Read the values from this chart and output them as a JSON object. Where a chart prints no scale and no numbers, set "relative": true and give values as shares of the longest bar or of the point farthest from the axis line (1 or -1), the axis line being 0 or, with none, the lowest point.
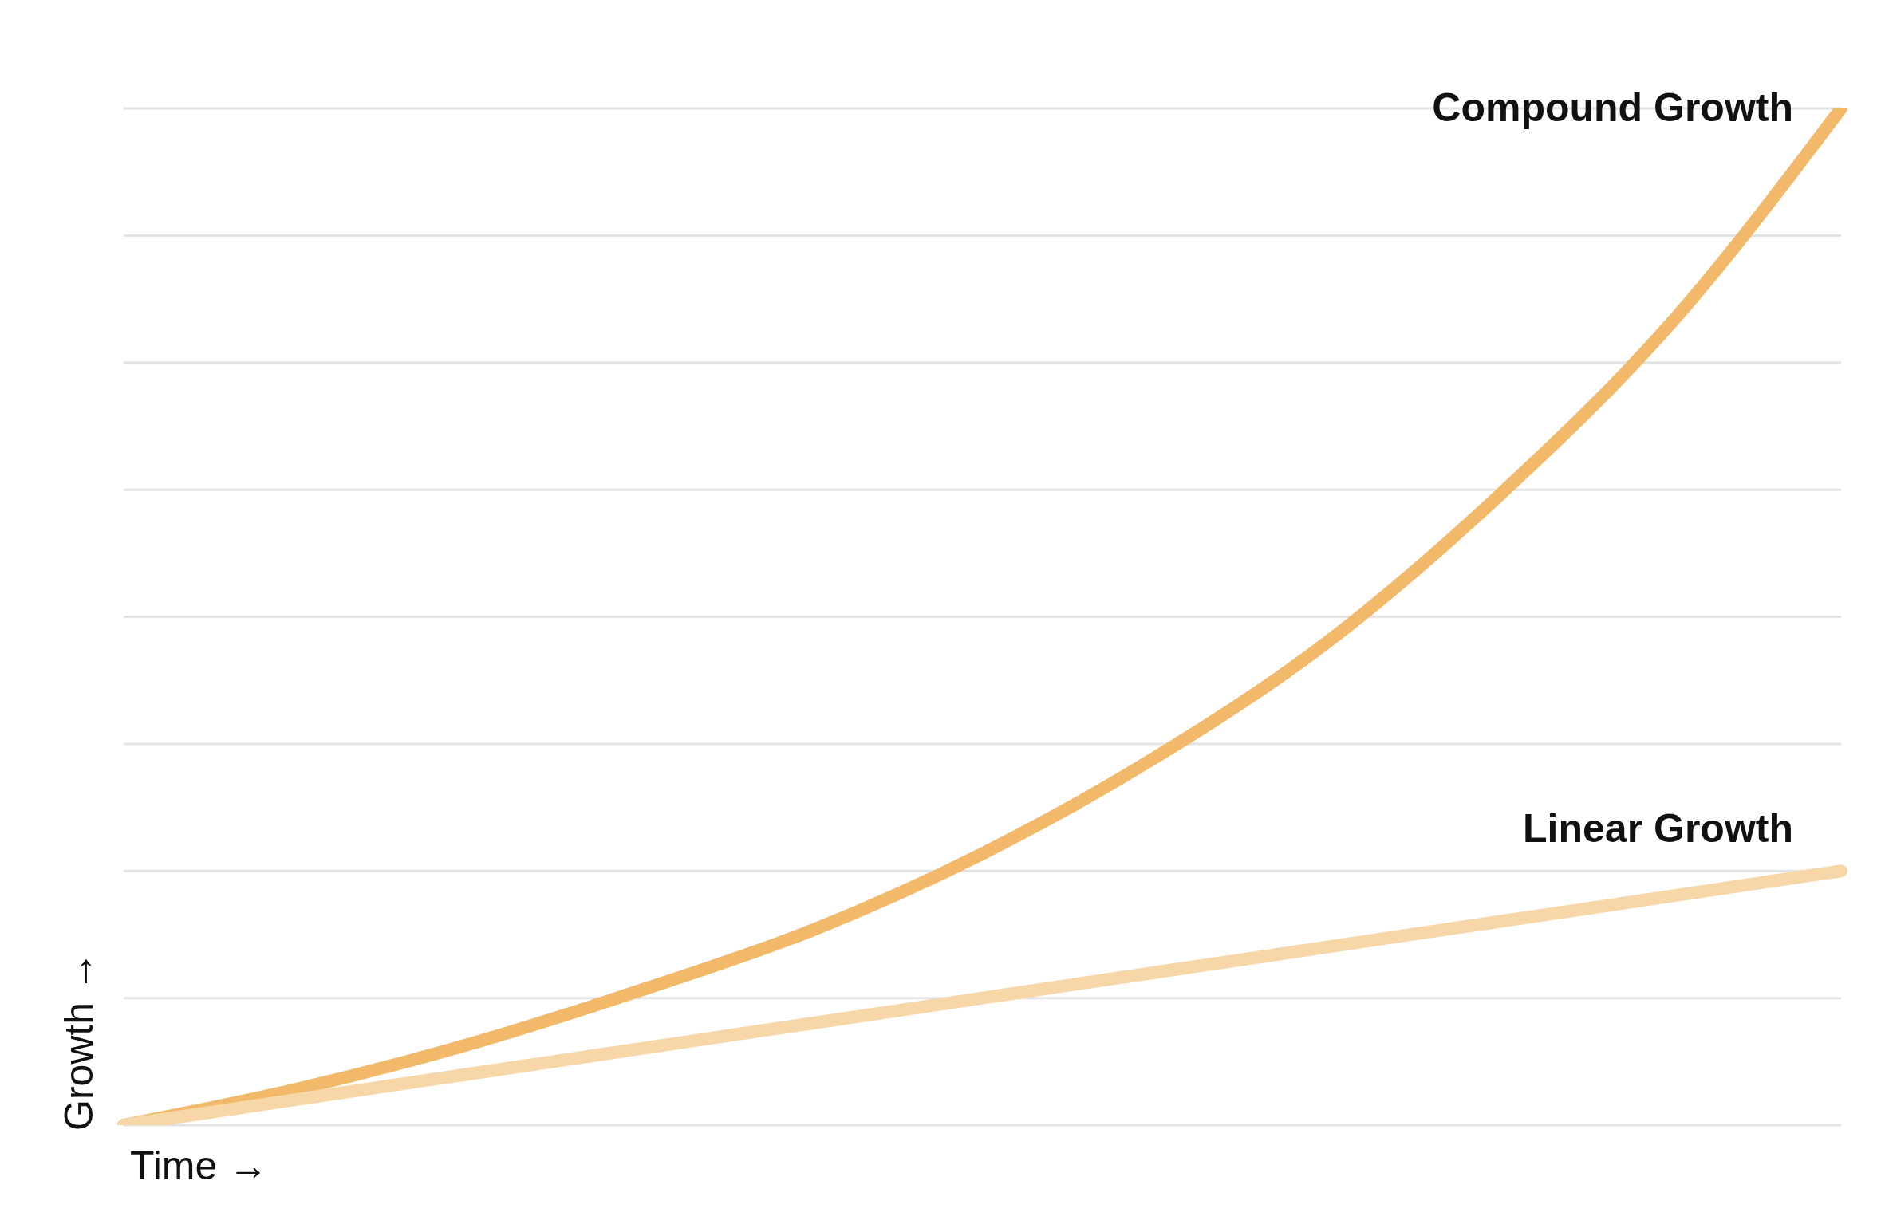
{
  "chart_data": {
    "type": "line",
    "relative": true,
    "xlabel": "Time →",
    "ylabel": "Growth →",
    "categories": [
      null,
      null,
      null,
      null,
      null,
      null,
      null,
      null,
      null,
      null,
      null
    ],
    "series": [
      {
        "name": "Compound Growth",
        "color": "#f3b96a",
        "values": [
          0,
          0.035,
          0.079,
          0.132,
          0.191,
          0.267,
          0.361,
          0.474,
          0.618,
          0.787,
          1
        ]
      },
      {
        "name": "Linear Growth",
        "color": "#f7d7a8",
        "values": [
          0,
          0.025,
          0.05,
          0.075,
          0.1,
          0.125,
          0.15,
          0.175,
          0.2,
          0.225,
          0.25
        ]
      }
    ],
    "grid": "y",
    "legend": false,
    "marker": "none",
    "line_style": "solid"
  }
}
